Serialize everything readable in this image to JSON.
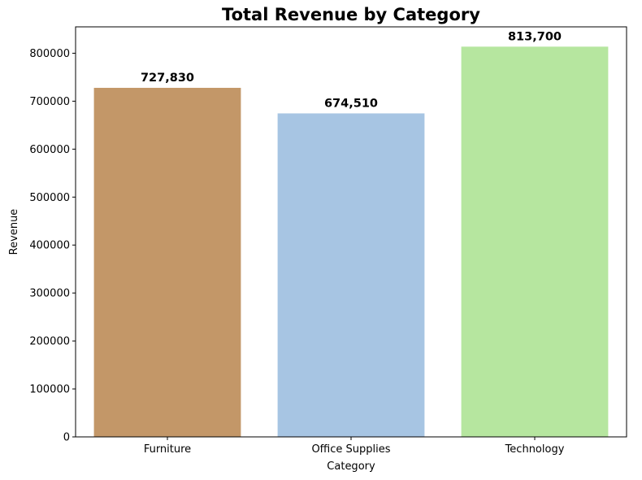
{
  "chart_data": {
    "type": "bar",
    "title": "Total Revenue by Category",
    "xlabel": "Category",
    "ylabel": "Revenue",
    "categories": [
      "Furniture",
      "Office Supplies",
      "Technology"
    ],
    "values": [
      727830,
      674510,
      813700
    ],
    "value_labels": [
      "727,830",
      "674,510",
      "813,700"
    ],
    "colors": [
      "#c39768",
      "#a7c5e3",
      "#b6e69f"
    ],
    "ylim": [
      0,
      855000
    ],
    "yticks": [
      0,
      100000,
      200000,
      300000,
      400000,
      500000,
      600000,
      700000,
      800000
    ],
    "ytick_labels": [
      "0",
      "100000",
      "200000",
      "300000",
      "400000",
      "500000",
      "600000",
      "700000",
      "800000"
    ],
    "grid": false,
    "legend": "none"
  }
}
